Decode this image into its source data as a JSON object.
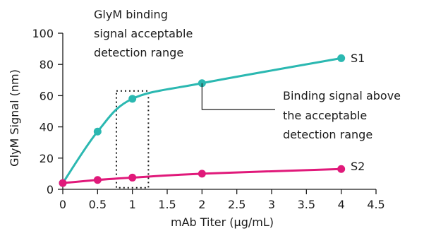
{
  "chart_data": {
    "type": "line",
    "xlabel": "mAb Titer (µg/mL)",
    "ylabel": "GlyM Signal (nm)",
    "xlim": [
      0,
      4.5
    ],
    "ylim": [
      0,
      100
    ],
    "xticks": [
      0,
      0.5,
      1,
      1.5,
      2,
      2.5,
      3,
      3.5,
      4,
      4.5
    ],
    "xtick_labels": [
      "0",
      "0.5",
      "1",
      "1.5",
      "2",
      "2.5",
      "3",
      "3.5",
      "4",
      "4.5"
    ],
    "yticks": [
      0,
      20,
      40,
      60,
      80,
      100
    ],
    "ytick_labels": [
      "0",
      "20",
      "40",
      "60",
      "80",
      "100"
    ],
    "grid": false,
    "series": [
      {
        "name": "S1",
        "color": "#2bb8b1",
        "x": [
          0,
          0.5,
          1,
          2,
          4
        ],
        "y": [
          4,
          37,
          58,
          68,
          84
        ]
      },
      {
        "name": "S2",
        "color": "#e0197a",
        "x": [
          0,
          0.5,
          1,
          2,
          4
        ],
        "y": [
          4,
          6,
          7.5,
          10,
          13
        ]
      }
    ],
    "acceptable_range_box": {
      "x": [
        0.77,
        1.23
      ],
      "y": [
        1,
        63
      ]
    },
    "annotations": [
      {
        "id": "range",
        "lines": [
          "GlyM binding",
          "signal acceptable",
          "detection range"
        ]
      },
      {
        "id": "above",
        "lines": [
          "Binding signal above",
          "the acceptable",
          "detection range"
        ]
      }
    ]
  }
}
